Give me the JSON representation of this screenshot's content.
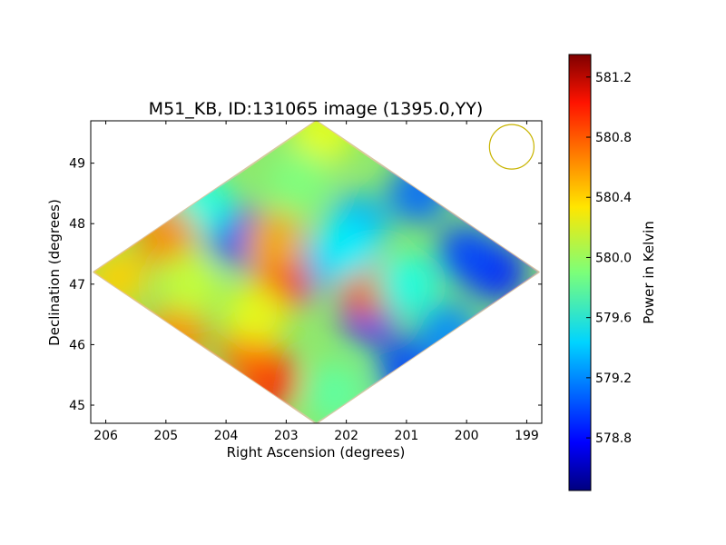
{
  "chart_data": {
    "type": "heatmap",
    "title": "M51_KB, ID:131065 image (1395.0,YY)",
    "xlabel": "Right Ascension (degrees)",
    "ylabel": "Declination (degrees)",
    "xlim": [
      206.25,
      198.75
    ],
    "ylim": [
      44.7,
      49.7
    ],
    "x_ticks": [
      206,
      205,
      204,
      203,
      202,
      201,
      200,
      199
    ],
    "x_tick_labels": [
      "206",
      "205",
      "204",
      "203",
      "202",
      "201",
      "200",
      "199"
    ],
    "y_ticks": [
      45,
      46,
      47,
      48,
      49
    ],
    "y_tick_labels": [
      "45",
      "46",
      "47",
      "48",
      "49"
    ],
    "colorbar": {
      "label": "Power in Kelvin",
      "colormap": "jet",
      "range": [
        578.45,
        581.35
      ],
      "ticks": [
        578.8,
        579.2,
        579.6,
        580.0,
        580.4,
        580.8,
        581.2
      ],
      "tick_labels": [
        "578.8",
        "579.2",
        "579.6",
        "580.0",
        "580.4",
        "580.8",
        "581.2"
      ]
    },
    "map_outline_diamond": {
      "left": [
        206.2,
        47.2
      ],
      "top": [
        202.5,
        49.7
      ],
      "right": [
        198.8,
        47.2
      ],
      "bottom": [
        202.5,
        44.7
      ]
    },
    "features": [
      {
        "ra": 199.5,
        "dec": 47.2,
        "value": 578.9
      },
      {
        "ra": 200.0,
        "dec": 47.5,
        "value": 579.0
      },
      {
        "ra": 200.8,
        "dec": 48.5,
        "value": 579.1
      },
      {
        "ra": 201.0,
        "dec": 45.6,
        "value": 579.0
      },
      {
        "ra": 200.3,
        "dec": 46.2,
        "value": 579.2
      },
      {
        "ra": 201.6,
        "dec": 46.5,
        "value": 578.9
      },
      {
        "ra": 201.8,
        "dec": 48.0,
        "value": 579.3
      },
      {
        "ra": 203.8,
        "dec": 47.8,
        "value": 578.9
      },
      {
        "ra": 204.4,
        "dec": 48.3,
        "value": 579.6
      },
      {
        "ra": 202.4,
        "dec": 49.5,
        "value": 580.2
      },
      {
        "ra": 202.8,
        "dec": 48.7,
        "value": 579.9
      },
      {
        "ra": 205.0,
        "dec": 47.8,
        "value": 580.6
      },
      {
        "ra": 205.8,
        "dec": 47.1,
        "value": 580.4
      },
      {
        "ra": 204.8,
        "dec": 46.2,
        "value": 580.6
      },
      {
        "ra": 203.3,
        "dec": 45.4,
        "value": 580.9
      },
      {
        "ra": 203.6,
        "dec": 45.9,
        "value": 580.7
      },
      {
        "ra": 202.2,
        "dec": 45.2,
        "value": 579.8
      },
      {
        "ra": 202.6,
        "dec": 47.3,
        "value": 579.3
      },
      {
        "ra": 203.1,
        "dec": 47.0,
        "value": 580.9
      },
      {
        "ra": 201.6,
        "dec": 46.9,
        "value": 580.7
      },
      {
        "ra": 203.2,
        "dec": 47.7,
        "value": 580.5
      },
      {
        "ra": 202.0,
        "dec": 47.6,
        "value": 579.5
      },
      {
        "ra": 203.5,
        "dec": 46.5,
        "value": 580.2
      },
      {
        "ra": 201.0,
        "dec": 47.0,
        "value": 579.6
      },
      {
        "ra": 204.6,
        "dec": 47.0,
        "value": 580.1
      }
    ],
    "beam": {
      "ra": 199.25,
      "dec": 49.27,
      "radius_deg": 0.37,
      "color": "#c8b400"
    },
    "grid": false,
    "colors": {
      "frame": "#000000",
      "background": "#ffffff"
    }
  }
}
